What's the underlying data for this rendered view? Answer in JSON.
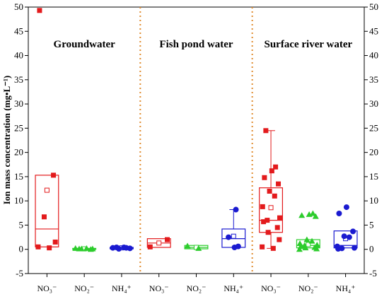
{
  "chart_data": {
    "type": "box",
    "ylabel": "Ion mass concentration (mg•L⁻¹)",
    "ylim": [
      -5,
      50
    ],
    "yticks": [
      -5,
      0,
      5,
      10,
      15,
      20,
      25,
      30,
      35,
      40,
      45,
      50
    ],
    "grid": false,
    "mirror_right_axis": true,
    "groups": [
      {
        "name": "Groundwater",
        "separator_after": true
      },
      {
        "name": "Fish pond water",
        "separator_after": true
      },
      {
        "name": "Surface river water",
        "separator_after": false
      }
    ],
    "categories": [
      {
        "label": "NO₃⁻"
      },
      {
        "label": "NO₂⁻"
      },
      {
        "label": "NH₄⁺"
      },
      {
        "label": "NO₃⁻"
      },
      {
        "label": "NO₂⁻"
      },
      {
        "label": "NH₄⁺"
      },
      {
        "label": "NO₃⁻"
      },
      {
        "label": "NO₂⁻"
      },
      {
        "label": "NH₄⁺"
      }
    ],
    "series_colors": {
      "NO3": "#e31a1c",
      "NO2": "#2ccc2c",
      "NH4": "#1a1ad0",
      "separator": "#e08a2c"
    },
    "boxes": [
      {
        "group": 0,
        "ion": "NO3",
        "marker": "square",
        "q1": 0.5,
        "median": 4.2,
        "q3": 15.3,
        "mean": 12.2,
        "whisker_low": null,
        "whisker_high": null,
        "points": [
          49.3,
          15.3,
          6.7,
          1.5,
          0.5,
          0.3
        ]
      },
      {
        "group": 0,
        "ion": "NO2",
        "marker": "triangle",
        "q1": 0.0,
        "median": 0.1,
        "q3": 0.2,
        "mean": 0.1,
        "whisker_low": null,
        "whisker_high": null,
        "points": [
          0.0,
          0.1,
          0.1,
          0.2,
          0.2,
          0.1
        ]
      },
      {
        "group": 0,
        "ion": "NH4",
        "marker": "circle",
        "q1": 0.1,
        "median": 0.2,
        "q3": 0.4,
        "mean": 0.3,
        "whisker_low": null,
        "whisker_high": null,
        "points": [
          0.1,
          0.2,
          0.3,
          0.4,
          0.4,
          0.3
        ]
      },
      {
        "group": 1,
        "ion": "NO3",
        "marker": "square",
        "q1": 0.4,
        "median": 1.3,
        "q3": 2.2,
        "mean": 1.3,
        "whisker_low": null,
        "whisker_high": null,
        "points": [
          2.0,
          0.5
        ]
      },
      {
        "group": 1,
        "ion": "NO2",
        "marker": "triangle",
        "q1": 0.1,
        "median": 0.4,
        "q3": 0.8,
        "mean": 0.4,
        "whisker_low": null,
        "whisker_high": null,
        "points": [
          0.7,
          0.2
        ]
      },
      {
        "group": 1,
        "ion": "NH4",
        "marker": "circle",
        "q1": 0.4,
        "median": 2.2,
        "q3": 4.2,
        "mean": 2.7,
        "whisker_low": 0.4,
        "whisker_high": 8.2,
        "points": [
          8.2,
          2.5,
          0.6,
          0.4
        ]
      },
      {
        "group": 2,
        "ion": "NO3",
        "marker": "square",
        "q1": 3.5,
        "median": 6.0,
        "q3": 12.7,
        "mean": 8.6,
        "whisker_low": 0.2,
        "whisker_high": 24.5,
        "points": [
          24.5,
          17.0,
          16.2,
          14.8,
          13.5,
          12.0,
          11.0,
          8.8,
          6.5,
          6.0,
          5.7,
          4.5,
          3.5,
          2.0,
          0.5,
          0.2
        ]
      },
      {
        "group": 2,
        "ion": "NO2",
        "marker": "triangle",
        "q1": 0.3,
        "median": 0.8,
        "q3": 2.0,
        "mean": 1.0,
        "whisker_low": null,
        "whisker_high": null,
        "points": [
          7.4,
          7.2,
          7.0,
          6.8,
          2.0,
          1.7,
          1.2,
          0.9,
          0.8,
          0.6,
          0.4,
          0.3,
          0.1,
          0.0
        ]
      },
      {
        "group": 2,
        "ion": "NH4",
        "marker": "circle",
        "q1": 0.3,
        "median": 0.8,
        "q3": 3.8,
        "mean": 2.2,
        "whisker_low": null,
        "whisker_high": null,
        "points": [
          8.7,
          7.4,
          3.7,
          2.7,
          2.5,
          0.6,
          0.3,
          0.2,
          0.1
        ]
      }
    ]
  }
}
